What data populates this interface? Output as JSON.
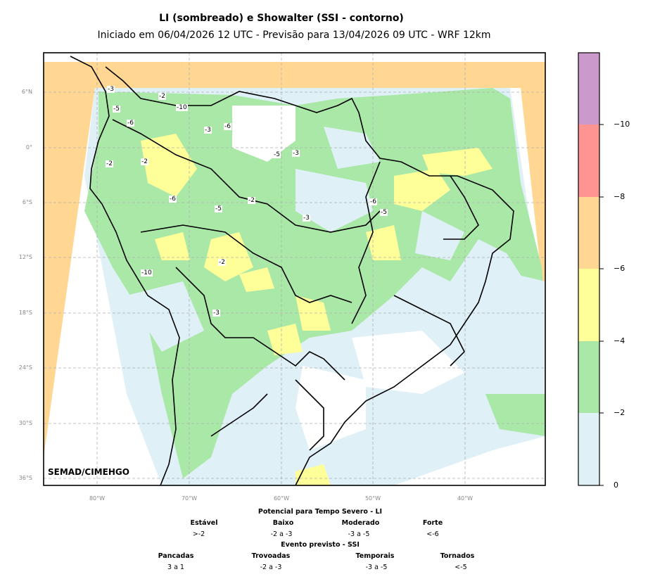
{
  "header": {
    "title": "LI (sombreado) e Showalter (SSI - contorno)",
    "subtitle": "Iniciado em 06/04/2026 12 UTC - Previsão para 13/04/2026 09 UTC - WRF 12km"
  },
  "map": {
    "lat_labels": [
      "6°N",
      "0°",
      "6°S",
      "12°S",
      "18°S",
      "24°S",
      "30°S",
      "36°S"
    ],
    "lon_labels": [
      "80°W",
      "70°W",
      "60°W",
      "50°W",
      "40°W"
    ],
    "credit": "SEMAD/CIMEHGO",
    "ssi_contour_labels": [
      "-3",
      "-5",
      "-6",
      "-2",
      "-10",
      "-3",
      "-2",
      "-6",
      "-5",
      "-3",
      "-2",
      "-6",
      "-10",
      "-5",
      "-2",
      "-3",
      "-6",
      "-5",
      "-2",
      "-3"
    ]
  },
  "colorbar": {
    "colors": [
      "#dff0f7",
      "#a9e8a7",
      "#ffff99",
      "#ffd793",
      "#ff9492",
      "#cc99cc"
    ],
    "ticks": [
      "0",
      "−2",
      "−4",
      "−6",
      "−8",
      "−10"
    ]
  },
  "legend": {
    "li_title": "Potencial para Tempo Severo - LI",
    "li_categories": [
      {
        "label": "Estável",
        "range": ">-2"
      },
      {
        "label": "Baixo",
        "range": "-2 a -3"
      },
      {
        "label": "Moderado",
        "range": "-3 a -5"
      },
      {
        "label": "Forte",
        "range": "<-6"
      }
    ],
    "ssi_title": "Evento previsto - SSI",
    "ssi_categories": [
      {
        "label": "Pancadas",
        "range": "3 a 1"
      },
      {
        "label": "Trovoadas",
        "range": "-2 a -3"
      },
      {
        "label": "Temporais",
        "range": "-3 a -5"
      },
      {
        "label": "Tornados",
        "range": "<-5"
      }
    ]
  }
}
